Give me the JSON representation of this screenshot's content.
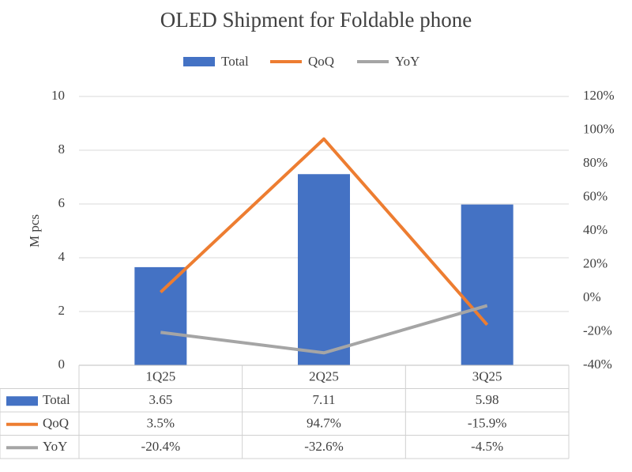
{
  "chart_data": {
    "type": "bar",
    "title": "OLED Shipment for Foldable phone",
    "y_label": "M pcs",
    "categories": [
      "1Q25",
      "2Q25",
      "3Q25"
    ],
    "series": [
      {
        "name": "Total",
        "type": "bar",
        "color": "#4472c4",
        "values": [
          3.65,
          7.11,
          5.98
        ]
      },
      {
        "name": "QoQ",
        "type": "line",
        "axis": "y2",
        "color": "#ed7d31",
        "values": [
          3.5,
          94.7,
          -15.9
        ],
        "value_labels": [
          "3.5%",
          "94.7%",
          "-15.9%"
        ]
      },
      {
        "name": "YoY",
        "type": "line",
        "axis": "y2",
        "color": "#a5a5a5",
        "values": [
          -20.4,
          -32.6,
          -4.5
        ],
        "value_labels": [
          "-20.4%",
          "-32.6%",
          "-4.5%"
        ]
      }
    ],
    "ylim": [
      0,
      10
    ],
    "yticks": [
      0,
      2,
      4,
      6,
      8,
      10
    ],
    "y2lim": [
      -40,
      120
    ],
    "y2ticks": [
      {
        "value": -40,
        "label": "-40%"
      },
      {
        "value": -20,
        "label": "-20%"
      },
      {
        "value": 0,
        "label": "0%"
      },
      {
        "value": 20,
        "label": "20%"
      },
      {
        "value": 40,
        "label": "40%"
      },
      {
        "value": 60,
        "label": "60%"
      },
      {
        "value": 80,
        "label": "80%"
      },
      {
        "value": 100,
        "label": "100%"
      },
      {
        "value": 120,
        "label": "120%"
      }
    ],
    "grid": true,
    "legend": "top"
  }
}
